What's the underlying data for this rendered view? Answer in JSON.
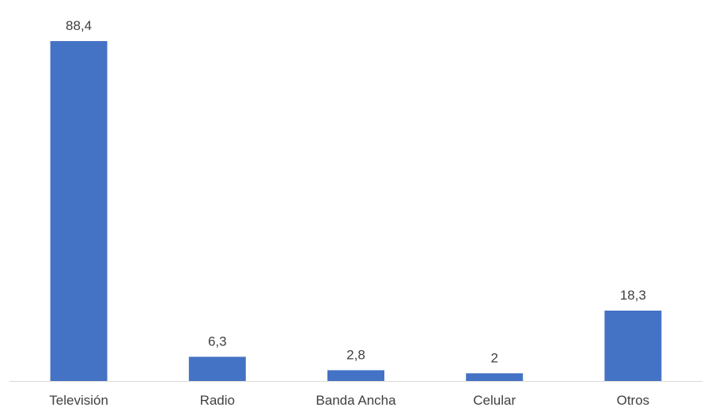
{
  "chart_data": {
    "type": "bar",
    "categories": [
      "Televisión",
      "Radio",
      "Banda Ancha",
      "Celular",
      "Otros"
    ],
    "values": [
      88.4,
      6.3,
      2.8,
      2,
      18.3
    ],
    "value_labels": [
      "88,4",
      "6,3",
      "2,8",
      "2",
      "18,3"
    ],
    "title": "",
    "xlabel": "",
    "ylabel": "",
    "ylim": [
      0,
      88.4
    ],
    "grid": false,
    "legend": "none",
    "bar_color": "#4472C4",
    "axis_color": "#D9D9D9",
    "text_color": "#404040"
  }
}
